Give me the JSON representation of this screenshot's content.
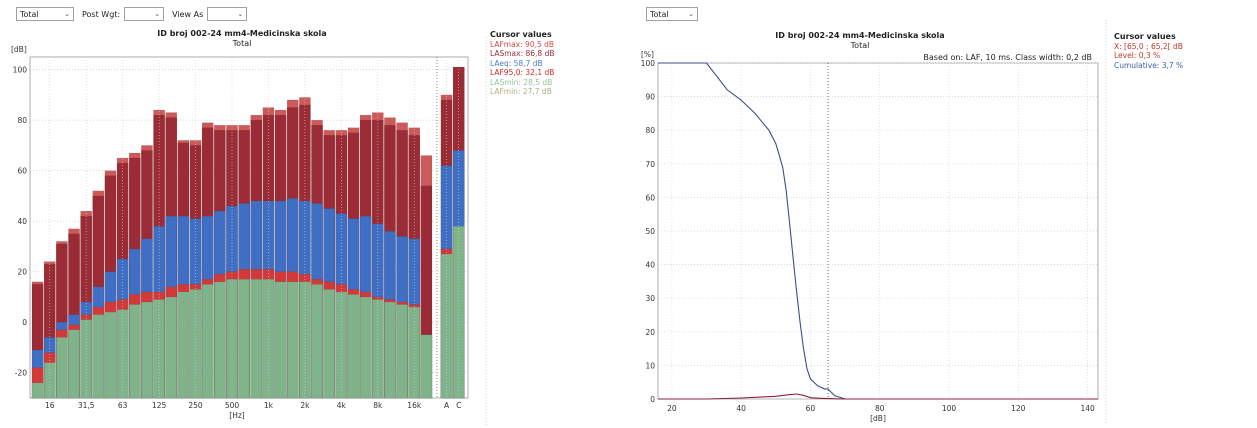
{
  "left": {
    "controls": {
      "total": "Total",
      "post_wgt_label": "Post Wgt:",
      "post_wgt_value": "",
      "view_as_label": "View As",
      "view_as_value": ""
    },
    "title": "ID broj 002-24 mm4-Medicinska skola",
    "subtitle": "Total",
    "cursor": {
      "header": "Cursor values",
      "lines": [
        {
          "text": "LAFmax: 90,5 dB",
          "color": "#d44a4a"
        },
        {
          "text": "LASmax: 86,8 dB",
          "color": "#9c2b3a"
        },
        {
          "text": "LAeq: 58,7 dB",
          "color": "#4f7ed0"
        },
        {
          "text": "LAF95,0: 32,1 dB",
          "color": "#d42a2a"
        },
        {
          "text": "LASmin: 28,5 dB",
          "color": "#8fc59a"
        },
        {
          "text": "LAFmin: 27,7 dB",
          "color": "#b0b080"
        }
      ]
    }
  },
  "right": {
    "controls": {
      "total": "Total"
    },
    "title": "ID broj 002-24 mm4-Medicinska skola",
    "subtitle": "Total",
    "based_on": "Based on: LAF, 10 ms. Class width: 0,2 dB",
    "cursor": {
      "header": "Cursor values",
      "lines": [
        {
          "text": "X: [65,0 ; 65,2[ dB",
          "color": "#c0392b"
        },
        {
          "text": "Level: 0,3 %",
          "color": "#c0392b"
        },
        {
          "text": "Cumulative: 3,7 %",
          "color": "#3a5fb0"
        }
      ]
    }
  },
  "chart_data": [
    {
      "type": "bar",
      "title": "ID broj 002-24 mm4-Medicinska skola",
      "subtitle": "Total",
      "ylabel": "[dB]",
      "xlabel": "[Hz]",
      "ylim": [
        -30,
        105
      ],
      "yticks": [
        -20,
        0,
        20,
        40,
        60,
        80,
        100
      ],
      "xtick_labels": [
        "16",
        "31,5",
        "63",
        "125",
        "250",
        "500",
        "1k",
        "2k",
        "4k",
        "8k",
        "16k",
        "A",
        "C"
      ],
      "grid": true,
      "stacked_overlay": true,
      "categories": [
        "12.5",
        "16",
        "20",
        "25",
        "31.5",
        "40",
        "50",
        "63",
        "80",
        "100",
        "125",
        "160",
        "200",
        "250",
        "315",
        "400",
        "500",
        "630",
        "800",
        "1k",
        "1.25k",
        "1.6k",
        "2k",
        "2.5k",
        "3.15k",
        "4k",
        "5k",
        "6.3k",
        "8k",
        "10k",
        "12.5k",
        "16k",
        "20k",
        "A",
        "C"
      ],
      "colors": {
        "LAFmax": "#cc5a5a",
        "LASmax": "#9b2c36",
        "LAeq": "#3f6fc4",
        "LAF95": "#d23a3a",
        "LASmin": "#7fb38a"
      },
      "series": [
        {
          "name": "LAFmax",
          "values": [
            16,
            24,
            32,
            37,
            44,
            52,
            60,
            65,
            67,
            70,
            84,
            83,
            72,
            72,
            79,
            78,
            78,
            78,
            82,
            85,
            84,
            88,
            89,
            80,
            76,
            76,
            77,
            82,
            83,
            81,
            79,
            77,
            66,
            90,
            101
          ]
        },
        {
          "name": "LASmax",
          "values": [
            15,
            23,
            31,
            35,
            42,
            50,
            58,
            63,
            65,
            68,
            82,
            81,
            71,
            70,
            77,
            76,
            76,
            76,
            80,
            82,
            82,
            85,
            86,
            78,
            74,
            74,
            75,
            80,
            80,
            78,
            76,
            74,
            54,
            88,
            101
          ]
        },
        {
          "name": "LAeq",
          "values": [
            -11,
            -6,
            0,
            3,
            8,
            14,
            20,
            25,
            29,
            33,
            38,
            42,
            42,
            41,
            42,
            44,
            46,
            47,
            48,
            48,
            48,
            49,
            48,
            47,
            45,
            43,
            41,
            42,
            39,
            36,
            34,
            33,
            -5,
            62,
            68
          ]
        },
        {
          "name": "LAF95",
          "values": [
            -18,
            -12,
            -3,
            -1,
            3,
            6,
            8,
            9,
            11,
            12,
            12,
            14,
            15,
            15,
            17,
            19,
            20,
            21,
            21,
            21,
            20,
            20,
            19,
            17,
            16,
            15,
            13,
            12,
            10,
            9,
            8,
            7,
            -5,
            29,
            33
          ]
        },
        {
          "name": "LASmin",
          "values": [
            -24,
            -16,
            -6,
            -3,
            1,
            3,
            4,
            5,
            7,
            8,
            9,
            10,
            12,
            13,
            15,
            16,
            17,
            17,
            17,
            17,
            16,
            16,
            16,
            15,
            13,
            12,
            11,
            10,
            9,
            8,
            7,
            6,
            -5,
            27,
            38
          ]
        }
      ]
    },
    {
      "type": "line",
      "title": "ID broj 002-24 mm4-Medicinska skola",
      "subtitle": "Total",
      "ylabel": "[%]",
      "xlabel": "[dB]",
      "xlim": [
        16,
        143
      ],
      "ylim": [
        0,
        100
      ],
      "xticks": [
        20,
        40,
        60,
        80,
        100,
        120,
        140
      ],
      "yticks": [
        0,
        10,
        20,
        30,
        40,
        50,
        60,
        70,
        80,
        90,
        100
      ],
      "grid": true,
      "cursor_x": 65.1,
      "series": [
        {
          "name": "Cumulative",
          "color": "#3a4d8c",
          "points": [
            [
              16,
              100
            ],
            [
              30,
              100
            ],
            [
              33,
              96
            ],
            [
              36,
              92
            ],
            [
              40,
              89
            ],
            [
              44,
              85
            ],
            [
              48,
              80
            ],
            [
              50,
              76
            ],
            [
              52,
              69
            ],
            [
              53,
              62
            ],
            [
              54,
              52
            ],
            [
              55,
              42
            ],
            [
              56,
              32
            ],
            [
              57,
              23
            ],
            [
              58,
              15
            ],
            [
              59,
              9
            ],
            [
              60,
              6
            ],
            [
              62,
              4
            ],
            [
              64,
              3
            ],
            [
              65,
              3
            ],
            [
              67,
              1
            ],
            [
              70,
              0
            ],
            [
              143,
              0
            ]
          ]
        },
        {
          "name": "Level",
          "color": "#8b2040",
          "points": [
            [
              16,
              0
            ],
            [
              30,
              0
            ],
            [
              40,
              0.3
            ],
            [
              50,
              0.8
            ],
            [
              54,
              1.3
            ],
            [
              56,
              1.5
            ],
            [
              58,
              1.1
            ],
            [
              60,
              0.4
            ],
            [
              63,
              0.2
            ],
            [
              66,
              0.1
            ],
            [
              70,
              0
            ],
            [
              143,
              0
            ]
          ]
        }
      ]
    }
  ]
}
